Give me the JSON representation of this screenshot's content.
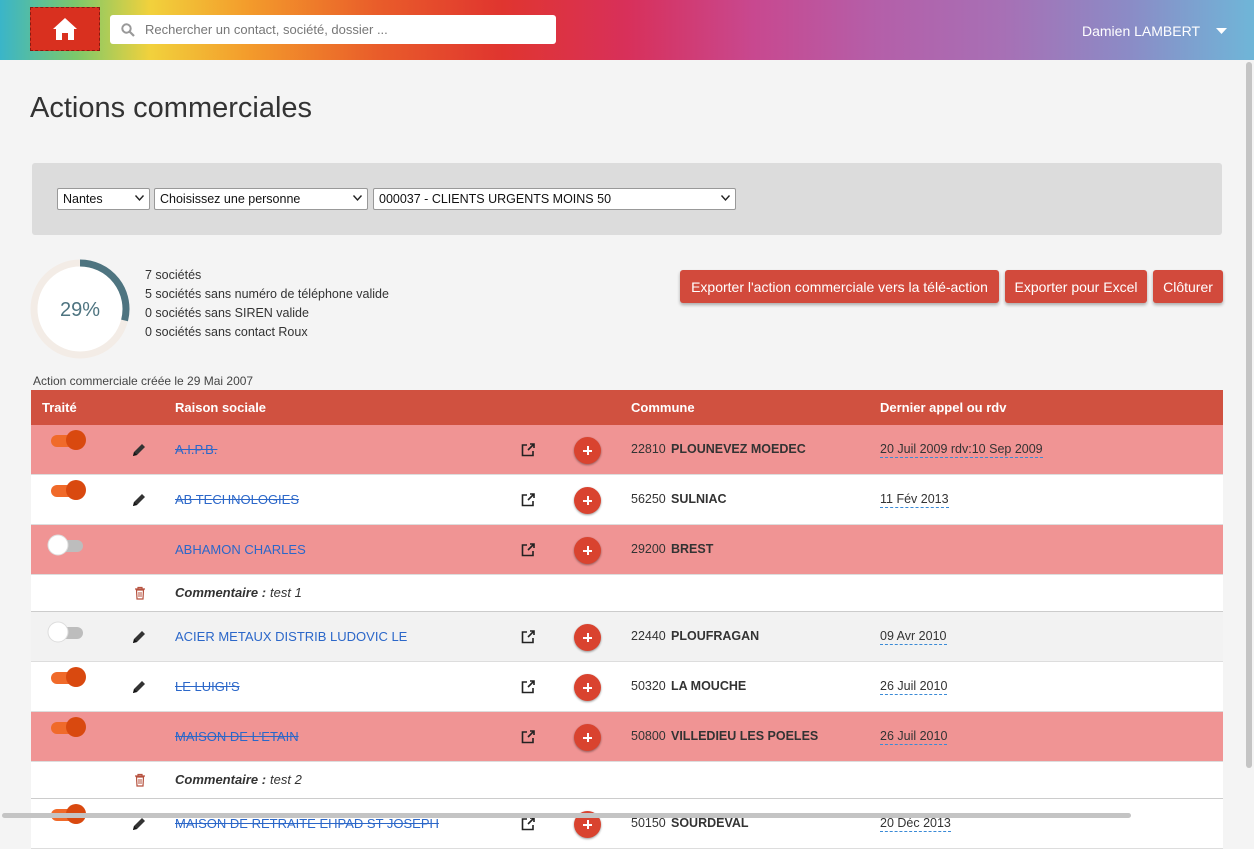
{
  "header": {
    "search_placeholder": "Rechercher un contact, société, dossier ...",
    "user": "Damien LAMBERT"
  },
  "page_title": "Actions commerciales",
  "filters": [
    "Nantes",
    "Choisissez une personne",
    "000037 - CLIENTS URGENTS MOINS 50"
  ],
  "progress": {
    "value": 29,
    "label": "29%",
    "color": "#4e7480"
  },
  "stats": [
    "7 sociétés",
    "5 sociétés sans numéro de téléphone valide",
    "0 sociétés sans SIREN valide",
    "0 sociétés sans contact Roux"
  ],
  "buttons": [
    "Exporter l'action commerciale vers la télé-action",
    "Exporter pour Excel",
    "Clôturer"
  ],
  "created": "Action commerciale créée le 29 Mai 2007",
  "table": {
    "columns": [
      "Traité",
      "Raison sociale",
      "Commune",
      "Dernier appel ou rdv"
    ],
    "rows": [
      {
        "name": "A.I.P.B.",
        "postcode": "22810",
        "city": "PLOUNEVEZ MOEDEC",
        "last": "20 Juil 2009 rdv:10 Sep 2009",
        "done": true,
        "editable": true,
        "color": "#f09494"
      },
      {
        "name": "AB TECHNOLOGIES",
        "postcode": "56250",
        "city": "SULNIAC",
        "last": "11 Fév 2013",
        "done": true,
        "editable": true,
        "color": "#ffffff"
      },
      {
        "name": "ABHAMON CHARLES",
        "postcode": "29200",
        "city": "BREST",
        "done": false,
        "editable": false,
        "color": "#f09494",
        "comment": {
          "label": "Commentaire :",
          "text": "test 1"
        }
      },
      {
        "name": "ACIER METAUX DISTRIB LUDOVIC LE",
        "postcode": "22440",
        "city": "PLOUFRAGAN",
        "last": "09 Avr 2010",
        "done": false,
        "editable": true,
        "color": "#f2f2f2"
      },
      {
        "name": "LE LUIGI'S",
        "postcode": "50320",
        "city": "LA MOUCHE",
        "last": "26 Juil 2010",
        "done": true,
        "editable": true,
        "color": "#ffffff"
      },
      {
        "name": "MAISON DE L'ETAIN",
        "postcode": "50800",
        "city": "VILLEDIEU LES POELES",
        "last": "26 Juil 2010",
        "done": true,
        "editable": false,
        "color": "#f09494",
        "comment": {
          "label": "Commentaire :",
          "text": "test 2"
        }
      },
      {
        "name": "MAISON DE RETRAITE EHPAD ST JOSEPH",
        "postcode": "50150",
        "city": "SOURDEVAL",
        "last": "20 Déc 2013",
        "done": true,
        "editable": true,
        "color": "#ffffff"
      }
    ]
  }
}
